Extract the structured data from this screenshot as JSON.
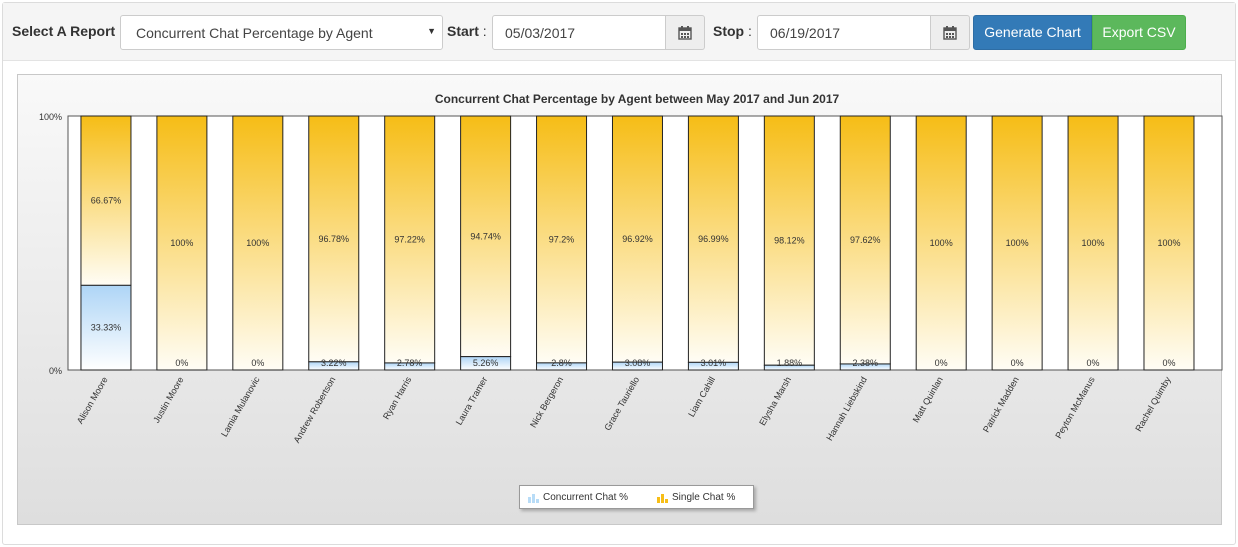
{
  "toolbar": {
    "report_label": "Select A Report",
    "report_value": "Concurrent Chat Percentage by Agent",
    "start_label": "Start",
    "start_sep": ":",
    "start_value": "05/03/2017",
    "stop_label": "Stop",
    "stop_sep": ":",
    "stop_value": "06/19/2017",
    "generate_label": "Generate Chart",
    "export_label": "Export CSV",
    "dropdown_icon": "caret-down-icon",
    "calendar_icon": "calendar-icon"
  },
  "colors": {
    "generate": "#337ab7",
    "export": "#5cb85c",
    "concurrent": "#b8dcf7",
    "single": "#f7be17"
  },
  "chart_data": {
    "type": "bar",
    "stacked": true,
    "title": "Concurrent Chat Percentage by Agent between May 2017 and Jun 2017",
    "xlabel": "",
    "ylabel": "",
    "ylim": [
      0,
      100
    ],
    "yticks": [
      "0%",
      "100%"
    ],
    "legend_position": "bottom-center",
    "categories": [
      "Alison Moore",
      "Justin Moore",
      "Lamia Mulanovic",
      "Andrew Robertson",
      "Ryan Harris",
      "Laura Tramer",
      "Nick Bergeron",
      "Grace Tauriello",
      "Liam Cahill",
      "Elysha Marsh",
      "Hannah Liebskind",
      "Matt Quinlan",
      "Patrick Madden",
      "Peyton McManus",
      "Rachel Quimby"
    ],
    "series": [
      {
        "name": "Concurrent Chat %",
        "values": [
          33.33,
          0,
          0,
          3.22,
          2.78,
          5.26,
          2.8,
          3.08,
          3.01,
          1.88,
          2.38,
          0,
          0,
          0,
          0
        ],
        "labels": [
          "33.33%",
          "0%",
          "0%",
          "3.22%",
          "2.78%",
          "5.26%",
          "2.8%",
          "3.08%",
          "3.01%",
          "1.88%",
          "2.38%",
          "0%",
          "0%",
          "0%",
          "0%"
        ]
      },
      {
        "name": "Single Chat %",
        "values": [
          66.67,
          100,
          100,
          96.78,
          97.22,
          94.74,
          97.2,
          96.92,
          96.99,
          98.12,
          97.62,
          100,
          100,
          100,
          100
        ],
        "labels": [
          "66.67%",
          "100%",
          "100%",
          "96.78%",
          "97.22%",
          "94.74%",
          "97.2%",
          "96.92%",
          "96.99%",
          "98.12%",
          "97.62%",
          "100%",
          "100%",
          "100%",
          "100%"
        ]
      }
    ]
  }
}
